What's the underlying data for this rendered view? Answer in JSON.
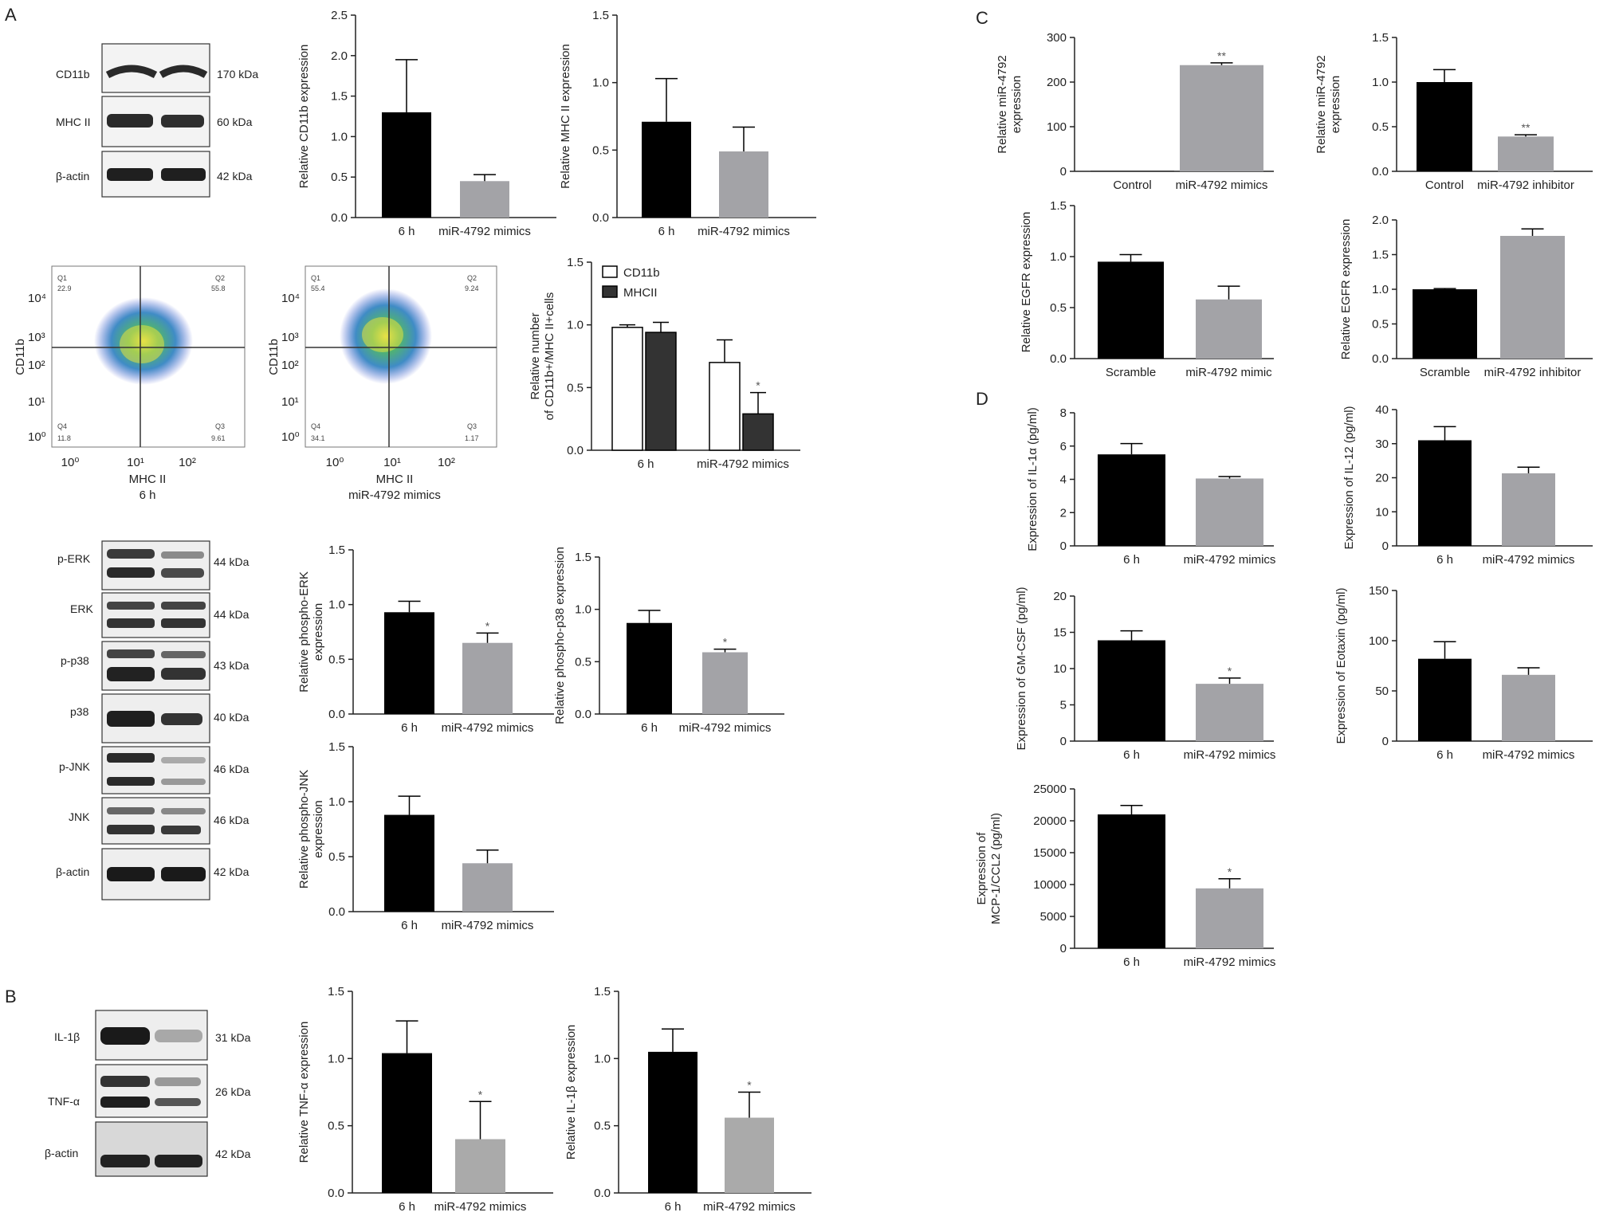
{
  "panels": {
    "a": "A",
    "b": "B",
    "c": "C",
    "d": "D"
  },
  "blots": {
    "a1": {
      "bands": [
        "CD11b",
        "MHC II",
        "β-actin"
      ],
      "sizes": [
        "170 kDa",
        "60 kDa",
        "42 kDa"
      ]
    },
    "a3": {
      "bands": [
        "p-ERK",
        "ERK",
        "p-p38",
        "p38",
        "p-JNK",
        "JNK",
        "β-actin"
      ],
      "sizes": [
        "44 kDa",
        "44 kDa",
        "43 kDa",
        "40 kDa",
        "46 kDa",
        "46 kDa",
        "42 kDa"
      ]
    },
    "b": {
      "bands": [
        "IL-1β",
        "TNF-α",
        "β-actin"
      ],
      "sizes": [
        "31 kDa",
        "26 kDa",
        "42 kDa"
      ]
    }
  },
  "flow": [
    {
      "ylabel": "CD11b",
      "xlabel": "MHC II",
      "condition": "6 h",
      "q1": "Q1",
      "q1v": "22.9",
      "q2": "Q2",
      "q2v": "55.8",
      "q3": "Q3",
      "q3v": "9.61",
      "q4": "Q4",
      "q4v": "11.8",
      "xticks": [
        "10⁰",
        "10¹",
        "10²"
      ],
      "yticks": [
        "10⁴",
        "10³",
        "10²",
        "10¹",
        "10⁰"
      ]
    },
    {
      "ylabel": "CD11b",
      "xlabel": "MHC II",
      "condition": "miR-4792 mimics",
      "q1": "Q1",
      "q1v": "55.4",
      "q2": "Q2",
      "q2v": "9.24",
      "q3": "Q3",
      "q3v": "1.17",
      "q4": "Q4",
      "q4v": "34.1",
      "xticks": [
        "10⁰",
        "10¹",
        "10²"
      ],
      "yticks": [
        "10⁴",
        "10³",
        "10²",
        "10¹",
        "10⁰"
      ]
    }
  ],
  "colors": {
    "black_bar": "#000000",
    "grey_bar": "#a3a3a7",
    "dark_bar": "#333333",
    "axis": "#222222"
  },
  "chart_data": [
    {
      "id": "a_cd11b",
      "type": "bar",
      "ylabel": "Relative CD11b expression",
      "categories": [
        "6 h",
        "miR-4792 mimics"
      ],
      "values": [
        1.3,
        0.45
      ],
      "errors": [
        0.65,
        0.08
      ],
      "ylim": [
        0,
        2.5
      ],
      "yticks": [
        "0.0",
        "0.5",
        "1.0",
        "1.5",
        "2.0",
        "2.5"
      ],
      "colors": [
        "#000000",
        "#a3a3a7"
      ],
      "sig": [
        "",
        ""
      ]
    },
    {
      "id": "a_mhc",
      "type": "bar",
      "ylabel": "Relative MHC II expression",
      "categories": [
        "6 h",
        "miR-4792 mimics"
      ],
      "values": [
        0.71,
        0.49
      ],
      "errors": [
        0.32,
        0.18
      ],
      "ylim": [
        0,
        1.5
      ],
      "yticks": [
        "0.0",
        "0.5",
        "1.0",
        "1.5"
      ],
      "colors": [
        "#000000",
        "#a3a3a7"
      ],
      "sig": [
        "",
        ""
      ]
    },
    {
      "id": "a_double",
      "type": "bar",
      "ylabel": [
        "Relative number",
        "of CD11b+/MHC II+cells"
      ],
      "categories": [
        "6 h",
        "miR-4792 mimics"
      ],
      "series": [
        {
          "name": "CD11b",
          "values": [
            0.98,
            0.7
          ],
          "errors": [
            0.02,
            0.18
          ],
          "sig": [
            "",
            ""
          ]
        },
        {
          "name": "MHCII",
          "values": [
            0.94,
            0.29
          ],
          "errors": [
            0.08,
            0.17
          ],
          "sig": [
            "",
            "*"
          ]
        }
      ],
      "ylim": [
        0,
        1.5
      ],
      "yticks": [
        "0.0",
        "0.5",
        "1.0",
        "1.5"
      ],
      "legend": "top-left"
    },
    {
      "id": "a_perk",
      "type": "bar",
      "ylabel": [
        "Relative phospho-ERK",
        "expression"
      ],
      "categories": [
        "6 h",
        "miR-4792 mimics"
      ],
      "values": [
        0.93,
        0.65
      ],
      "errors": [
        0.1,
        0.09
      ],
      "ylim": [
        0,
        1.5
      ],
      "yticks": [
        "0.0",
        "0.5",
        "1.0",
        "1.5"
      ],
      "colors": [
        "#000000",
        "#a3a3a7"
      ],
      "sig": [
        "",
        "*"
      ]
    },
    {
      "id": "a_pp38",
      "type": "bar",
      "ylabel": "Relative phospho-p38 expression",
      "categories": [
        "6 h",
        "miR-4792 mimics"
      ],
      "values": [
        0.87,
        0.59
      ],
      "errors": [
        0.12,
        0.03
      ],
      "ylim": [
        0,
        1.5
      ],
      "yticks": [
        "0.0",
        "0.5",
        "1.0",
        "1.5"
      ],
      "colors": [
        "#000000",
        "#a3a3a7"
      ],
      "sig": [
        "",
        "*"
      ]
    },
    {
      "id": "a_pjnk",
      "type": "bar",
      "ylabel": [
        "Relative phospho-JNK",
        "expression"
      ],
      "categories": [
        "6 h",
        "miR-4792 mimics"
      ],
      "values": [
        0.88,
        0.44
      ],
      "errors": [
        0.17,
        0.12
      ],
      "ylim": [
        0,
        1.5
      ],
      "yticks": [
        "0.0",
        "0.5",
        "1.0",
        "1.5"
      ],
      "colors": [
        "#000000",
        "#a3a3a7"
      ],
      "sig": [
        "",
        ""
      ]
    },
    {
      "id": "b_tnf",
      "type": "bar",
      "ylabel": "Relative TNF-α expression",
      "categories": [
        "6 h",
        "miR-4792 mimics"
      ],
      "values": [
        1.04,
        0.4
      ],
      "errors": [
        0.24,
        0.28
      ],
      "ylim": [
        0,
        1.5
      ],
      "yticks": [
        "0.0",
        "0.5",
        "1.0",
        "1.5"
      ],
      "colors": [
        "#000000",
        "#aaaaaa"
      ],
      "sig": [
        "",
        "*"
      ]
    },
    {
      "id": "b_il1b",
      "type": "bar",
      "ylabel": "Relative IL-1β expression",
      "categories": [
        "6 h",
        "miR-4792 mimics"
      ],
      "values": [
        1.05,
        0.56
      ],
      "errors": [
        0.17,
        0.19
      ],
      "ylim": [
        0,
        1.5
      ],
      "yticks": [
        "0.0",
        "0.5",
        "1.0",
        "1.5"
      ],
      "colors": [
        "#000000",
        "#aaaaaa"
      ],
      "sig": [
        "",
        "*"
      ]
    },
    {
      "id": "c_mir_mimic",
      "type": "bar",
      "ylabel": [
        "Relative miR-4792",
        "expression"
      ],
      "categories": [
        "Control",
        "miR-4792 mimics"
      ],
      "values": [
        1,
        238
      ],
      "errors": [
        0,
        5
      ],
      "ylim": [
        0,
        300
      ],
      "yticks": [
        "0",
        "100",
        "200",
        "300"
      ],
      "colors": [
        "#000000",
        "#a3a3a7"
      ],
      "sig": [
        "",
        "**"
      ]
    },
    {
      "id": "c_mir_inhib",
      "type": "bar",
      "ylabel": [
        "Relative miR-4792",
        "expression"
      ],
      "categories": [
        "Control",
        "miR-4792 inhibitor"
      ],
      "values": [
        1.0,
        0.39
      ],
      "errors": [
        0.14,
        0.02
      ],
      "ylim": [
        0,
        1.5
      ],
      "yticks": [
        "0.0",
        "0.5",
        "1.0",
        "1.5"
      ],
      "colors": [
        "#000000",
        "#a3a3a7"
      ],
      "sig": [
        "",
        "**"
      ]
    },
    {
      "id": "c_egfr_mimic",
      "type": "bar",
      "ylabel": "Relative EGFR expression",
      "categories": [
        "Scramble",
        "miR-4792 mimic"
      ],
      "values": [
        0.95,
        0.58
      ],
      "errors": [
        0.07,
        0.13
      ],
      "ylim": [
        0,
        1.5
      ],
      "yticks": [
        "0.0",
        "0.5",
        "1.0",
        "1.5"
      ],
      "colors": [
        "#000000",
        "#a3a3a7"
      ],
      "sig": [
        "",
        ""
      ]
    },
    {
      "id": "c_egfr_inhib",
      "type": "bar",
      "ylabel": "Relative EGFR expression",
      "categories": [
        "Scramble",
        "miR-4792 inhibitor"
      ],
      "values": [
        1.0,
        1.77
      ],
      "errors": [
        0.01,
        0.1
      ],
      "ylim": [
        0,
        2.0
      ],
      "yticks": [
        "0.0",
        "0.5",
        "1.0",
        "1.5",
        "2.0"
      ],
      "colors": [
        "#000000",
        "#a3a3a7"
      ],
      "sig": [
        "",
        ""
      ]
    },
    {
      "id": "d_il1a",
      "type": "bar",
      "ylabel": "Expression of IL-1α (pg/ml)",
      "categories": [
        "6 h",
        "miR-4792 mimics"
      ],
      "values": [
        5.5,
        4.05
      ],
      "errors": [
        0.65,
        0.12
      ],
      "ylim": [
        0,
        8
      ],
      "yticks": [
        "0",
        "2",
        "4",
        "6",
        "8"
      ],
      "colors": [
        "#000000",
        "#a3a3a7"
      ],
      "sig": [
        "",
        ""
      ]
    },
    {
      "id": "d_il12",
      "type": "bar",
      "ylabel": "Expression of IL-12 (pg/ml)",
      "categories": [
        "6 h",
        "miR-4792 mimics"
      ],
      "values": [
        31,
        21.3
      ],
      "errors": [
        4,
        1.8
      ],
      "ylim": [
        0,
        40
      ],
      "yticks": [
        "0",
        "10",
        "20",
        "30",
        "40"
      ],
      "colors": [
        "#000000",
        "#a3a3a7"
      ],
      "sig": [
        "",
        ""
      ]
    },
    {
      "id": "d_gmcsf",
      "type": "bar",
      "ylabel": "Expression of GM-CSF (pg/ml)",
      "categories": [
        "6 h",
        "miR-4792 mimics"
      ],
      "values": [
        13.9,
        7.9
      ],
      "errors": [
        1.3,
        0.8
      ],
      "ylim": [
        0,
        20
      ],
      "yticks": [
        "0",
        "5",
        "10",
        "15",
        "20"
      ],
      "colors": [
        "#000000",
        "#a3a3a7"
      ],
      "sig": [
        "",
        "*"
      ]
    },
    {
      "id": "d_eotaxin",
      "type": "bar",
      "ylabel": "Expression of Eotaxin (pg/ml)",
      "categories": [
        "6 h",
        "miR-4792 mimics"
      ],
      "values": [
        82,
        66
      ],
      "errors": [
        17,
        7
      ],
      "ylim": [
        0,
        150
      ],
      "yticks": [
        "0",
        "50",
        "100",
        "150"
      ],
      "colors": [
        "#000000",
        "#a3a3a7"
      ],
      "sig": [
        "",
        ""
      ]
    },
    {
      "id": "d_mcp1",
      "type": "bar",
      "ylabel": [
        "Expression of",
        "MCP-1/CCL2 (pg/ml)"
      ],
      "categories": [
        "6 h",
        "miR-4792 mimics"
      ],
      "values": [
        21000,
        9400
      ],
      "errors": [
        1400,
        1500
      ],
      "ylim": [
        0,
        25000
      ],
      "yticks": [
        "0",
        "5000",
        "10000",
        "15000",
        "20000",
        "25000"
      ],
      "colors": [
        "#000000",
        "#a3a3a7"
      ],
      "sig": [
        "",
        "*"
      ]
    }
  ]
}
